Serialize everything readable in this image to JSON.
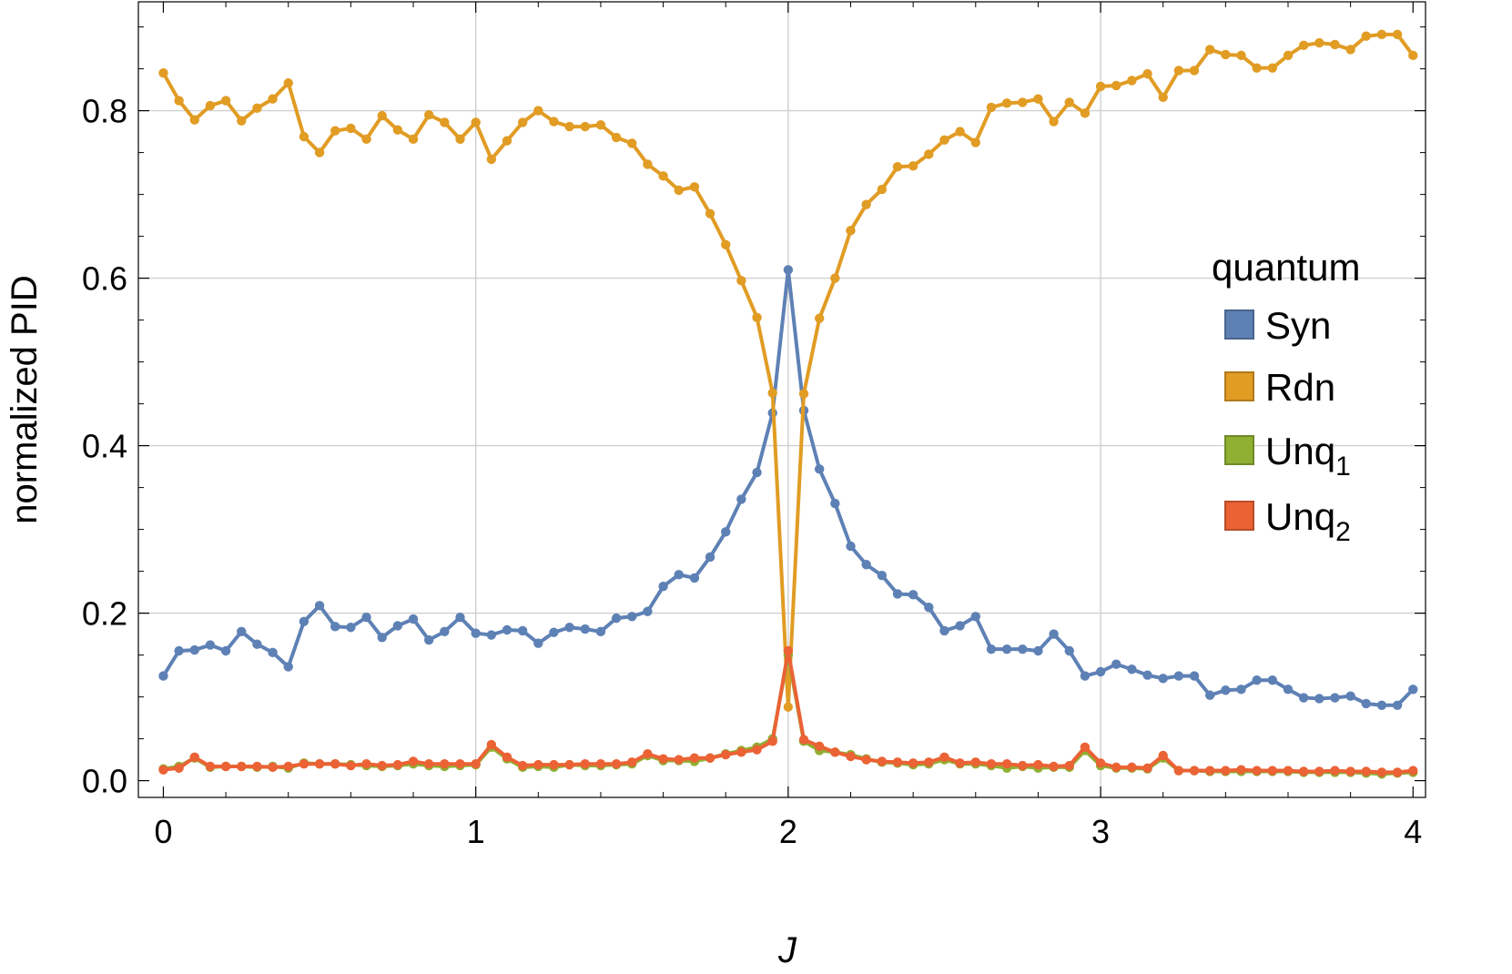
{
  "chart_data": {
    "type": "line",
    "xlabel": "J",
    "ylabel": "normalized PID",
    "xlim": [
      -0.08,
      4.04
    ],
    "ylim": [
      -0.02,
      0.93
    ],
    "x_ticks": [
      0,
      1,
      2,
      3,
      4
    ],
    "x_tick_labels": [
      "0",
      "1",
      "2",
      "3",
      "4"
    ],
    "y_ticks": [
      0.0,
      0.2,
      0.4,
      0.6,
      0.8
    ],
    "y_tick_labels": [
      "0.0",
      "0.2",
      "0.4",
      "0.6",
      "0.8"
    ],
    "grid": true,
    "legend": {
      "title": "quantum",
      "position": "right",
      "entries": [
        {
          "base": "Syn",
          "sub": ""
        },
        {
          "base": "Rdn",
          "sub": ""
        },
        {
          "base": "Unq",
          "sub": "1"
        },
        {
          "base": "Unq",
          "sub": "2"
        }
      ]
    },
    "x": [
      0.0,
      0.05,
      0.1,
      0.15,
      0.2,
      0.25,
      0.3,
      0.35,
      0.4,
      0.45,
      0.5,
      0.55,
      0.6,
      0.65,
      0.7,
      0.75,
      0.8,
      0.85,
      0.9,
      0.95,
      1.0,
      1.05,
      1.1,
      1.15,
      1.2,
      1.25,
      1.3,
      1.35,
      1.4,
      1.45,
      1.5,
      1.55,
      1.6,
      1.65,
      1.7,
      1.75,
      1.8,
      1.85,
      1.9,
      1.95,
      2.0,
      2.05,
      2.1,
      2.15,
      2.2,
      2.25,
      2.3,
      2.35,
      2.4,
      2.45,
      2.5,
      2.55,
      2.6,
      2.65,
      2.7,
      2.75,
      2.8,
      2.85,
      2.9,
      2.95,
      3.0,
      3.05,
      3.1,
      3.15,
      3.2,
      3.25,
      3.3,
      3.35,
      3.4,
      3.45,
      3.5,
      3.55,
      3.6,
      3.65,
      3.7,
      3.75,
      3.8,
      3.85,
      3.9,
      3.95,
      4.0
    ],
    "series": [
      {
        "name": "Syn",
        "color": "#5e81b5",
        "values": [
          0.125,
          0.155,
          0.156,
          0.162,
          0.155,
          0.178,
          0.163,
          0.153,
          0.136,
          0.19,
          0.209,
          0.184,
          0.183,
          0.195,
          0.171,
          0.185,
          0.193,
          0.168,
          0.178,
          0.195,
          0.176,
          0.174,
          0.18,
          0.179,
          0.164,
          0.177,
          0.183,
          0.181,
          0.178,
          0.194,
          0.196,
          0.202,
          0.232,
          0.246,
          0.242,
          0.267,
          0.297,
          0.336,
          0.368,
          0.439,
          0.61,
          0.442,
          0.372,
          0.331,
          0.28,
          0.258,
          0.245,
          0.223,
          0.222,
          0.207,
          0.179,
          0.185,
          0.196,
          0.157,
          0.157,
          0.157,
          0.155,
          0.175,
          0.155,
          0.125,
          0.13,
          0.139,
          0.133,
          0.126,
          0.122,
          0.125,
          0.125,
          0.102,
          0.108,
          0.109,
          0.12,
          0.12,
          0.109,
          0.099,
          0.098,
          0.099,
          0.101,
          0.092,
          0.09,
          0.09,
          0.109
        ]
      },
      {
        "name": "Rdn",
        "color": "#e19c24",
        "values": [
          0.845,
          0.812,
          0.789,
          0.806,
          0.812,
          0.788,
          0.803,
          0.814,
          0.833,
          0.769,
          0.75,
          0.776,
          0.779,
          0.766,
          0.794,
          0.777,
          0.766,
          0.795,
          0.786,
          0.766,
          0.786,
          0.742,
          0.764,
          0.786,
          0.8,
          0.787,
          0.781,
          0.781,
          0.783,
          0.768,
          0.761,
          0.736,
          0.722,
          0.705,
          0.709,
          0.677,
          0.64,
          0.597,
          0.553,
          0.463,
          0.088,
          0.462,
          0.552,
          0.6,
          0.657,
          0.688,
          0.706,
          0.733,
          0.734,
          0.748,
          0.765,
          0.775,
          0.762,
          0.804,
          0.809,
          0.81,
          0.814,
          0.787,
          0.81,
          0.797,
          0.829,
          0.83,
          0.836,
          0.844,
          0.816,
          0.848,
          0.848,
          0.873,
          0.867,
          0.866,
          0.851,
          0.851,
          0.866,
          0.878,
          0.881,
          0.879,
          0.873,
          0.889,
          0.891,
          0.891,
          0.866
        ]
      },
      {
        "name": "Unq1",
        "color": "#8fb032",
        "values": [
          0.014,
          0.017,
          0.027,
          0.016,
          0.017,
          0.017,
          0.016,
          0.017,
          0.015,
          0.021,
          0.02,
          0.02,
          0.019,
          0.018,
          0.017,
          0.018,
          0.02,
          0.018,
          0.017,
          0.018,
          0.019,
          0.04,
          0.026,
          0.016,
          0.017,
          0.016,
          0.019,
          0.018,
          0.018,
          0.019,
          0.02,
          0.03,
          0.024,
          0.024,
          0.023,
          0.027,
          0.032,
          0.036,
          0.04,
          0.05,
          0.15,
          0.047,
          0.036,
          0.034,
          0.031,
          0.026,
          0.022,
          0.021,
          0.019,
          0.02,
          0.025,
          0.02,
          0.02,
          0.018,
          0.015,
          0.017,
          0.015,
          0.016,
          0.016,
          0.036,
          0.018,
          0.015,
          0.015,
          0.014,
          0.027,
          0.012,
          0.012,
          0.011,
          0.011,
          0.011,
          0.011,
          0.011,
          0.011,
          0.01,
          0.01,
          0.01,
          0.01,
          0.009,
          0.008,
          0.009,
          0.01
        ]
      },
      {
        "name": "Unq2",
        "color": "#eb6235",
        "values": [
          0.013,
          0.015,
          0.028,
          0.017,
          0.017,
          0.017,
          0.017,
          0.016,
          0.017,
          0.02,
          0.02,
          0.02,
          0.018,
          0.02,
          0.018,
          0.019,
          0.023,
          0.02,
          0.02,
          0.02,
          0.02,
          0.043,
          0.028,
          0.018,
          0.019,
          0.019,
          0.019,
          0.02,
          0.02,
          0.02,
          0.022,
          0.032,
          0.026,
          0.025,
          0.027,
          0.027,
          0.031,
          0.034,
          0.037,
          0.047,
          0.155,
          0.049,
          0.041,
          0.034,
          0.029,
          0.025,
          0.023,
          0.022,
          0.021,
          0.022,
          0.028,
          0.021,
          0.022,
          0.02,
          0.02,
          0.018,
          0.019,
          0.017,
          0.018,
          0.04,
          0.021,
          0.016,
          0.016,
          0.015,
          0.03,
          0.012,
          0.012,
          0.012,
          0.012,
          0.013,
          0.012,
          0.012,
          0.012,
          0.011,
          0.011,
          0.012,
          0.011,
          0.011,
          0.01,
          0.01,
          0.012
        ]
      }
    ]
  }
}
